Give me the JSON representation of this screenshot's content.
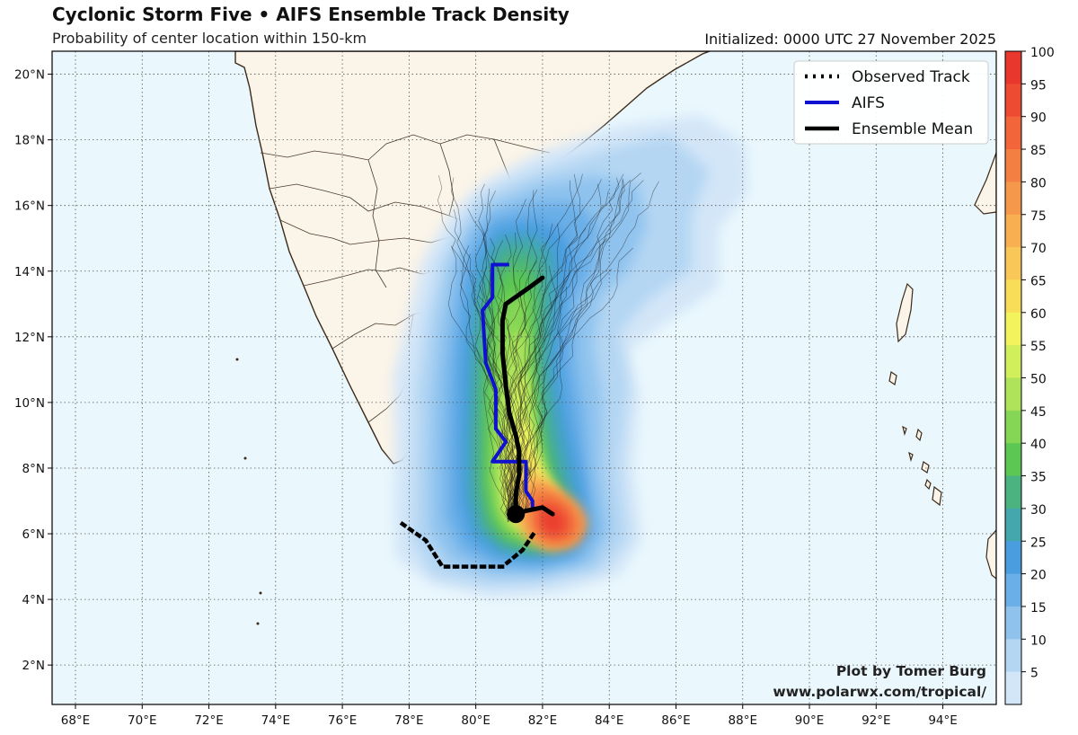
{
  "header": {
    "title": "Cyclonic Storm Five • AIFS Ensemble Track Density",
    "subtitle": "Probability of center location within 150-km",
    "initialized": "Initialized: 0000 UTC 27 November 2025"
  },
  "credit": {
    "line1": "Plot by Tomer Burg",
    "line2": "www.polarwx.com/tropical/"
  },
  "legend": {
    "placement": "top-right",
    "items": [
      {
        "label": "Observed Track",
        "color": "#000000",
        "style": "dotted"
      },
      {
        "label": "AIFS",
        "color": "#1010d0",
        "style": "solid"
      },
      {
        "label": "Ensemble Mean",
        "color": "#000000",
        "style": "solid"
      }
    ]
  },
  "colorbar": {
    "labels": [
      "100",
      "95",
      "90",
      "85",
      "80",
      "75",
      "70",
      "65",
      "60",
      "55",
      "50",
      "45",
      "40",
      "35",
      "30",
      "25",
      "20",
      "15",
      "10",
      "5"
    ],
    "colors": [
      "#e8382e",
      "#ee4b33",
      "#f2653b",
      "#f47f43",
      "#f5984b",
      "#f7af52",
      "#f8c758",
      "#f8de58",
      "#f3f35e",
      "#d1ee5b",
      "#aee35a",
      "#86d655",
      "#5cc752",
      "#4bb37f",
      "#43a7ad",
      "#4a9ee0",
      "#6aafe8",
      "#8fc3ee",
      "#b4d6f3",
      "#d3e6f8"
    ]
  },
  "map": {
    "ocean_color": "#eaf7fd",
    "land_color": "#fbf4e8",
    "x_ticks": [
      "68°E",
      "70°E",
      "72°E",
      "74°E",
      "76°E",
      "78°E",
      "80°E",
      "82°E",
      "84°E",
      "86°E",
      "88°E",
      "90°E",
      "92°E",
      "94°E"
    ],
    "y_ticks": [
      "20°N",
      "18°N",
      "16°N",
      "14°N",
      "12°N",
      "10°N",
      "8°N",
      "6°N",
      "4°N",
      "2°N"
    ],
    "lon_range": [
      67.3,
      95.6
    ],
    "lat_range": [
      0.8,
      20.7
    ]
  },
  "tracks": {
    "observed": [
      [
        77.8,
        6.3
      ],
      [
        78.5,
        5.8
      ],
      [
        79.0,
        5.0
      ],
      [
        79.8,
        5.0
      ],
      [
        80.8,
        5.0
      ],
      [
        81.4,
        5.5
      ],
      [
        81.8,
        6.1
      ]
    ],
    "aifs": [
      [
        81.0,
        14.2
      ],
      [
        80.5,
        14.2
      ],
      [
        80.5,
        13.2
      ],
      [
        80.2,
        12.8
      ],
      [
        80.3,
        11.2
      ],
      [
        80.6,
        10.4
      ],
      [
        80.6,
        9.2
      ],
      [
        80.9,
        8.8
      ],
      [
        80.5,
        8.2
      ],
      [
        81.5,
        8.2
      ],
      [
        81.5,
        7.3
      ],
      [
        81.7,
        7.0
      ],
      [
        81.7,
        6.7
      ]
    ],
    "ensemble_mean": [
      [
        82.0,
        13.8
      ],
      [
        81.6,
        13.5
      ],
      [
        80.9,
        13.0
      ],
      [
        80.8,
        12.5
      ],
      [
        80.8,
        11.5
      ],
      [
        80.9,
        10.5
      ],
      [
        81.0,
        9.7
      ],
      [
        81.2,
        9.0
      ],
      [
        81.3,
        8.5
      ],
      [
        81.3,
        7.8
      ],
      [
        81.2,
        7.2
      ],
      [
        81.2,
        6.6
      ],
      [
        81.5,
        6.7
      ],
      [
        82.0,
        6.8
      ],
      [
        82.3,
        6.6
      ]
    ],
    "current_position": [
      81.2,
      6.6
    ]
  },
  "density": {
    "core": [
      82.0,
      6.3
    ],
    "levels": [
      5,
      15,
      25,
      35,
      45,
      55,
      65,
      75,
      85,
      95
    ]
  }
}
